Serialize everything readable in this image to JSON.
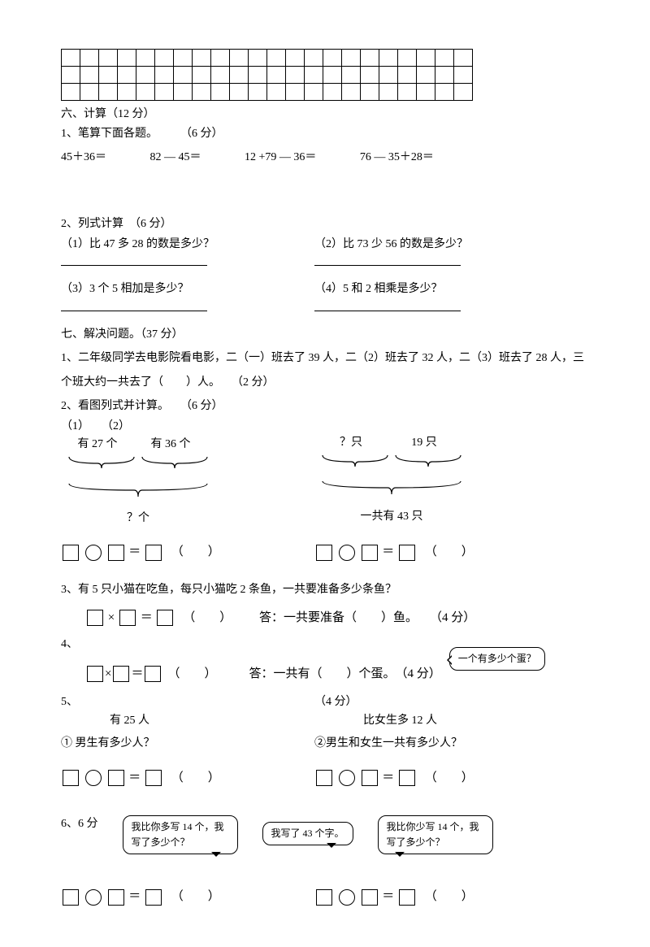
{
  "grid": {
    "rows": 3,
    "cols": 22
  },
  "s6": {
    "title": "六、计算（12 分）",
    "q1": {
      "title": "1、笔算下面各题。　　　（6 分）",
      "items": [
        "45＋36＝",
        "82 — 45＝",
        "12 +79 — 36＝",
        "76 — 35＋28＝"
      ]
    },
    "q2": {
      "title": "2、列式计算　（6 分）",
      "a": "（1）比 47 多 28 的数是多少？",
      "b": "（2）比 73 少 56 的数是多少？",
      "c": "（3）3 个 5 相加是多少？",
      "d": "（4）5 和 2 相乘是多少？"
    }
  },
  "s7": {
    "title": "七、解决问题。（37 分）",
    "q1": "1、二年级同学去电影院看电影，二（一）班去了 39 人，二（2）班去了 32 人，二（3）班去了 28 人，三个班大约一共去了（　　）人。　　（2 分）",
    "q2": {
      "title": "2、看图列式并计算。　　（6 分）",
      "left": {
        "tag1": "（1）",
        "tag2": "（2）",
        "a": "有 27 个",
        "b": "有 36 个",
        "q": "？个"
      },
      "right": {
        "a": "？只",
        "b": "19 只",
        "total": "一共有 43 只"
      }
    },
    "q3": {
      "text": "3、有 5 只小猫在吃鱼，每只小猫吃 2 条鱼，一共要准备多少条鱼？",
      "ans": "答：一共要准备（　　）鱼。　　（4 分）"
    },
    "q4": {
      "label": "4、",
      "bubble": "一个有多少个蛋？",
      "ans": "答：一共有（　　）个蛋。　（4 分）"
    },
    "q5": {
      "label": "5、",
      "pts": "（4 分）",
      "a": "有 25 人",
      "b": "比女生多 12 人",
      "qa": "① 男生有多少人？",
      "qb": "②男生和女生一共有多少人？"
    },
    "q6": {
      "label": "6、6 分",
      "b1": "我比你多写 14 个，我写了多少个？",
      "b2": "我写了 43 个字。",
      "b3": "我比你少写 14 个，我写了多少个？"
    }
  },
  "sym": {
    "times": "×",
    "eq": "＝",
    "lparen": "（",
    "rparen": "）"
  }
}
